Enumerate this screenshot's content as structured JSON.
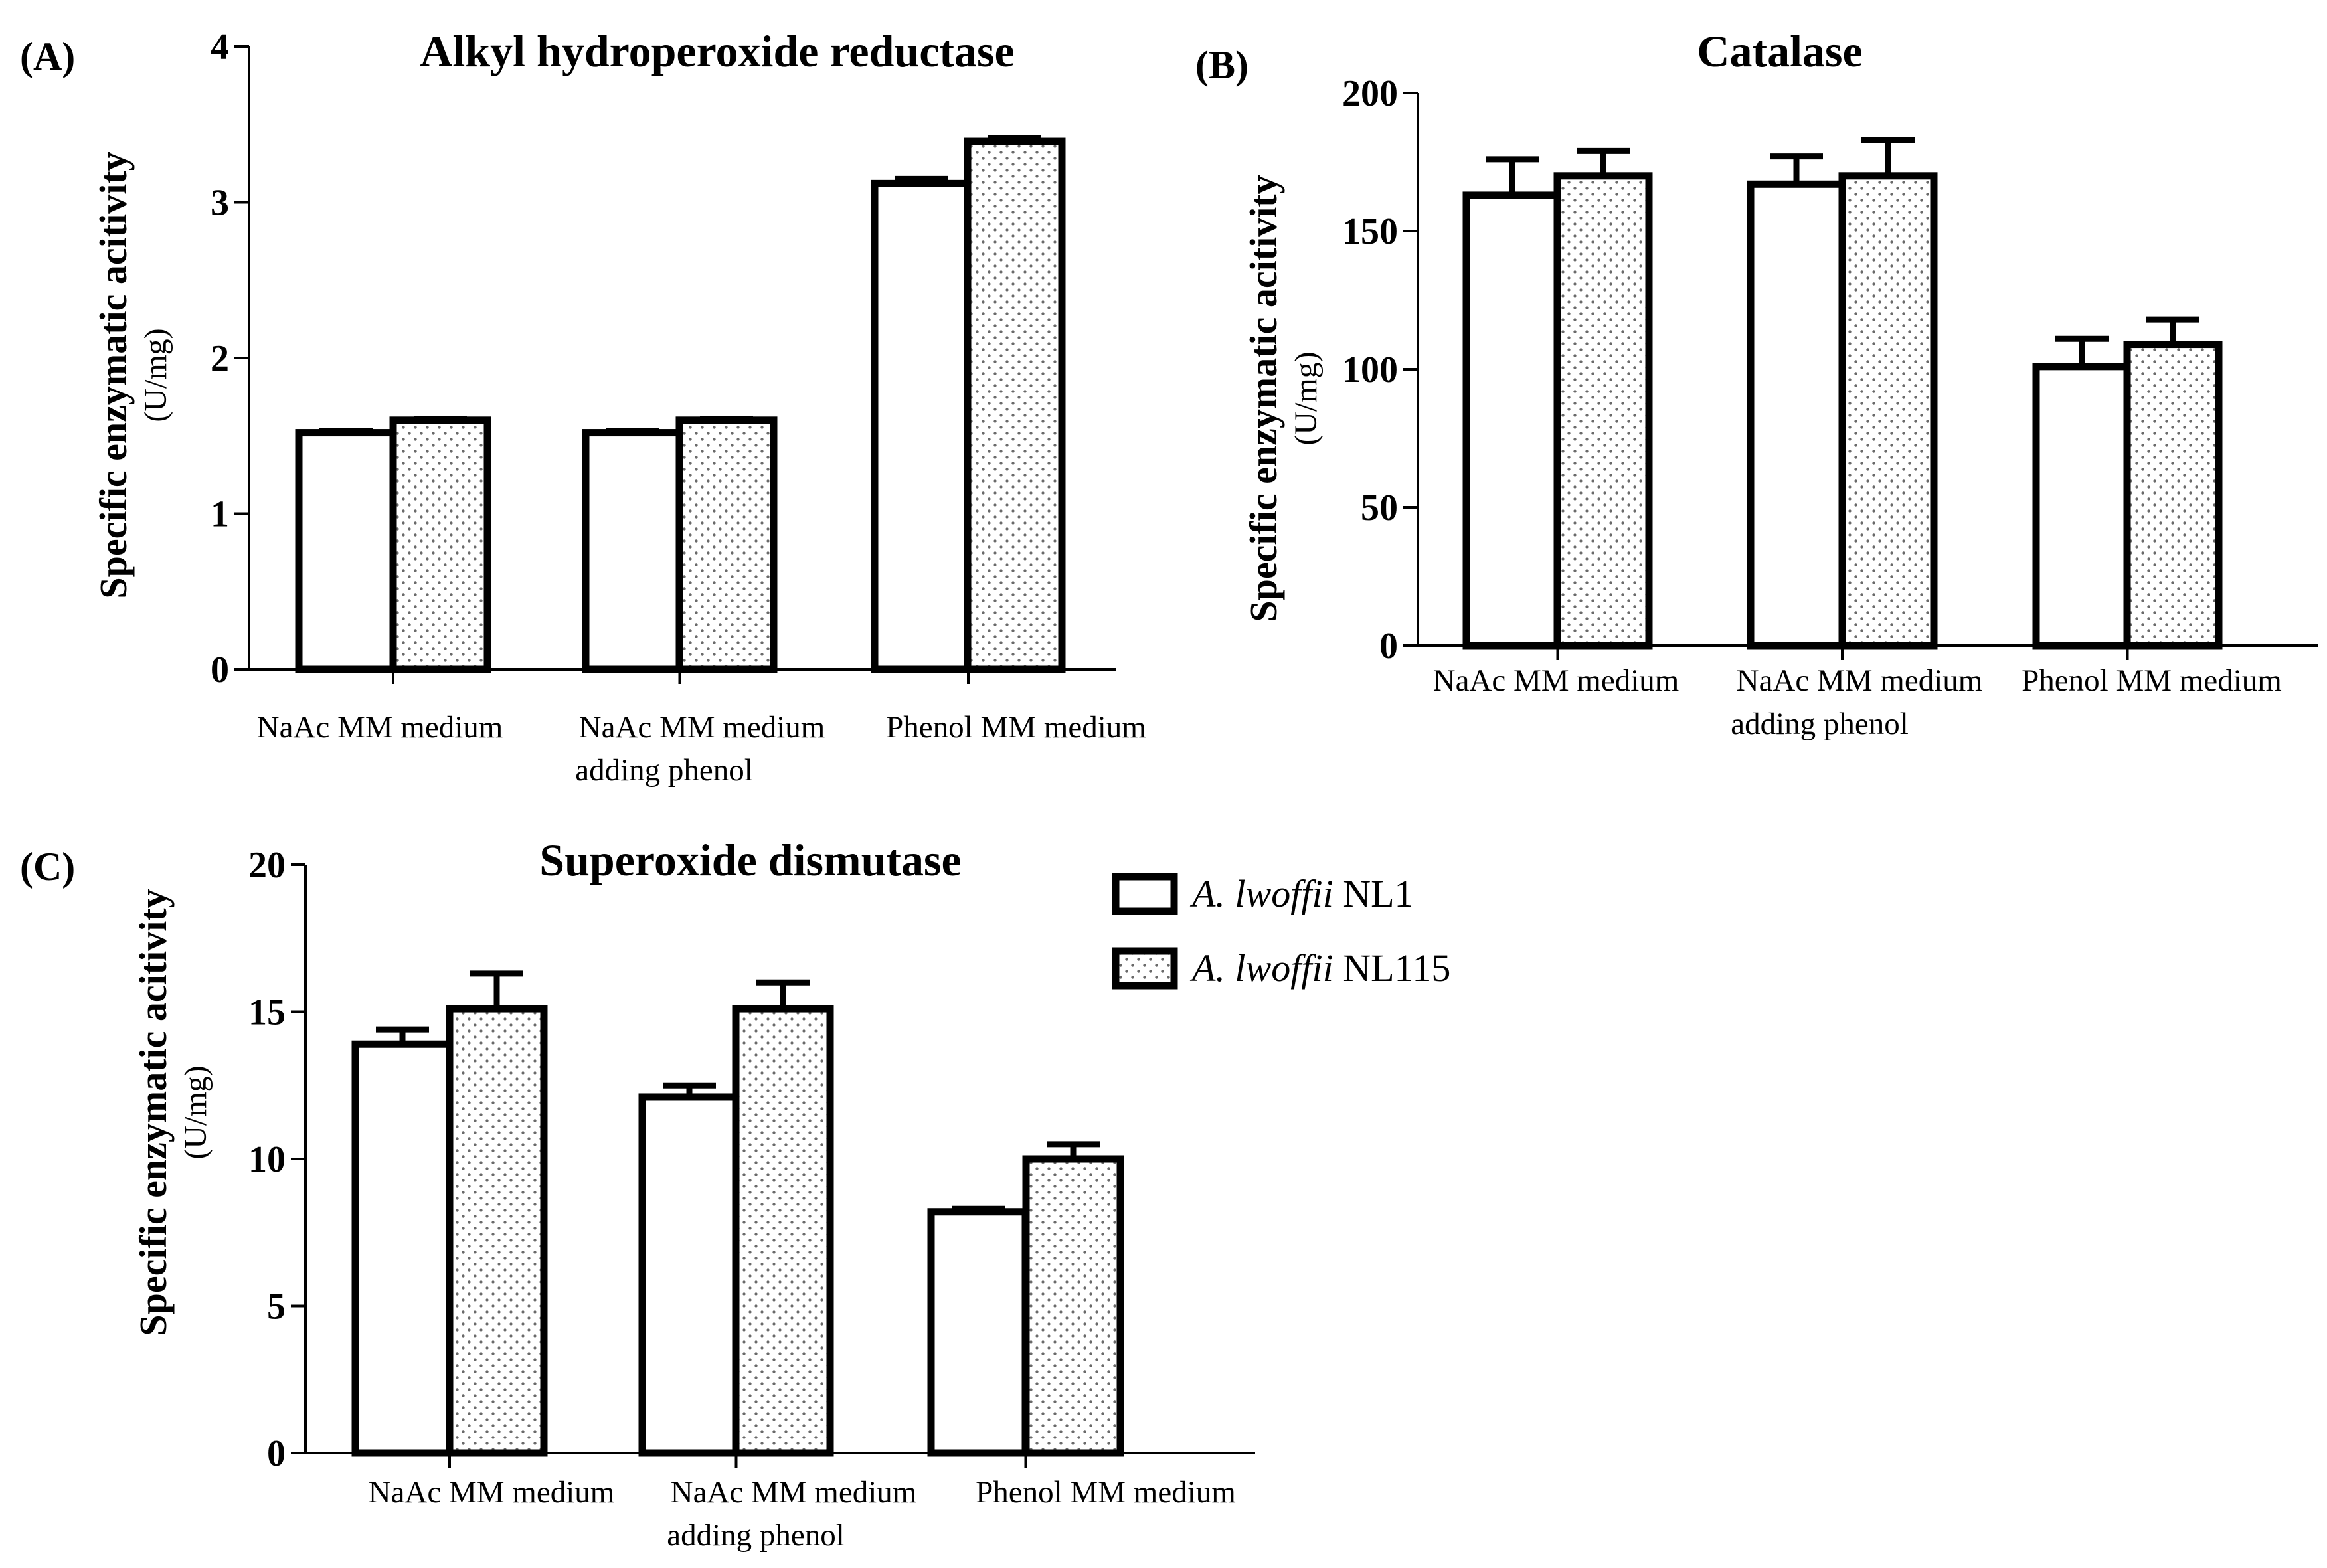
{
  "figure": {
    "legend": {
      "entries": [
        {
          "species": "A. lwoffii",
          "strain": "NL1",
          "pattern": "open"
        },
        {
          "species": "A. lwoffii",
          "strain": "NL115",
          "pattern": "dotted"
        }
      ]
    }
  },
  "colors": {
    "ink": "#000000",
    "background": "#ffffff",
    "dot_fill": "#6a6a6a"
  },
  "chart_data": [
    {
      "panel": "(A)",
      "type": "bar",
      "title": "Alkyl hydroperoxide reductase",
      "ylabel": "Specific enzymatic acitivity",
      "yunit": "(U/mg)",
      "ylim": [
        0,
        4
      ],
      "yticks": [
        0,
        1,
        2,
        3,
        4
      ],
      "categories": [
        {
          "line1": "NaAc MM medium",
          "line2": ""
        },
        {
          "line1": "NaAc MM medium",
          "line2": "adding phenol"
        },
        {
          "line1": "Phenol MM medium",
          "line2": ""
        }
      ],
      "series": [
        {
          "name": "A. lwoffii NL1",
          "values": [
            1.52,
            1.52,
            3.12
          ],
          "errors": [
            0.01,
            0.01,
            0.03
          ]
        },
        {
          "name": "A. lwoffii NL115",
          "values": [
            1.6,
            1.6,
            3.39
          ],
          "errors": [
            0.01,
            0.01,
            0.02
          ]
        }
      ]
    },
    {
      "panel": "(B)",
      "type": "bar",
      "title": "Catalase",
      "ylabel": "Specific enzymatic acitivity",
      "yunit": "(U/mg)",
      "ylim": [
        0,
        200
      ],
      "yticks": [
        0,
        50,
        100,
        150,
        200
      ],
      "categories": [
        {
          "line1": "NaAc MM medium",
          "line2": ""
        },
        {
          "line1": "NaAc MM medium",
          "line2": "adding phenol"
        },
        {
          "line1": "Phenol MM medium",
          "line2": ""
        }
      ],
      "series": [
        {
          "name": "A. lwoffii NL1",
          "values": [
            163,
            167,
            101
          ],
          "errors": [
            13,
            10,
            10
          ]
        },
        {
          "name": "A. lwoffii NL115",
          "values": [
            170,
            170,
            109
          ],
          "errors": [
            9,
            13,
            9
          ]
        }
      ]
    },
    {
      "panel": "(C)",
      "type": "bar",
      "title": "Superoxide dismutase",
      "ylabel": "Specific enzymatic acitivity",
      "yunit": "(U/mg)",
      "ylim": [
        0,
        20
      ],
      "yticks": [
        0,
        5,
        10,
        15,
        20
      ],
      "categories": [
        {
          "line1": "NaAc MM medium",
          "line2": ""
        },
        {
          "line1": "NaAc MM medium",
          "line2": "adding phenol"
        },
        {
          "line1": "Phenol MM medium",
          "line2": ""
        }
      ],
      "series": [
        {
          "name": "A. lwoffii NL1",
          "values": [
            13.9,
            12.1,
            8.2
          ],
          "errors": [
            0.5,
            0.4,
            0.1
          ]
        },
        {
          "name": "A. lwoffii NL115",
          "values": [
            15.1,
            15.1,
            10
          ],
          "errors": [
            1.2,
            0.9,
            0.5
          ]
        }
      ]
    }
  ]
}
